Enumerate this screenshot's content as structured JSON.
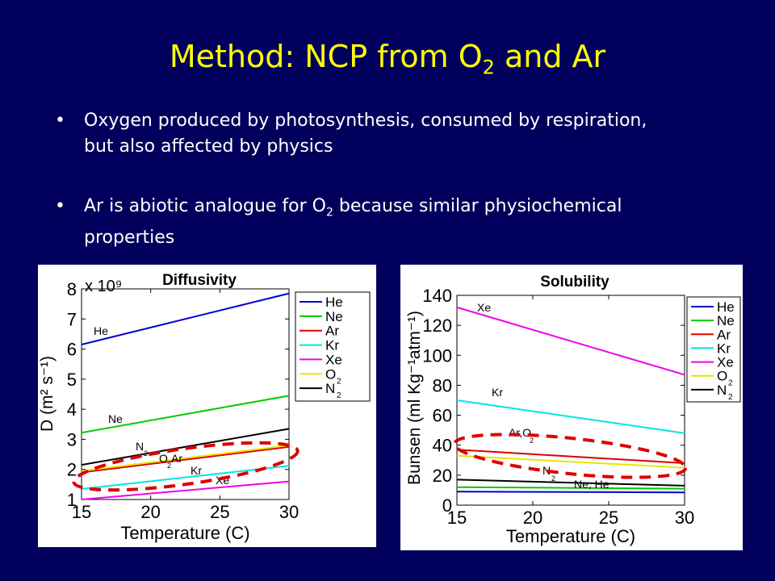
{
  "slide": {
    "title_main": "Method: NCP from O",
    "title_sub": "2",
    "title_tail": " and Ar",
    "bullets": [
      {
        "pre": "Oxygen produced by photosynthesis, consumed by respiration, but also affected by physics",
        "sub": "",
        "post": ""
      },
      {
        "pre": "Ar is abiotic analogue for O",
        "sub": "2",
        "post": "  because similar physiochemical properties"
      }
    ]
  },
  "colors": {
    "He": "#0000cc",
    "Ne": "#00cc00",
    "Ar": "#dd0000",
    "Kr": "#00e5e5",
    "Xe": "#ee00ee",
    "O2": "#e6e600",
    "N2": "#000000",
    "highlight": "#dd0000"
  },
  "chart_data": [
    {
      "type": "line",
      "title": "Diffusivity",
      "xlabel": "Temperature (C)",
      "ylabel": "D (m² s⁻¹)",
      "y_multiplier": "x 10⁹",
      "xlim": [
        15,
        30
      ],
      "ylim": [
        1,
        8
      ],
      "xticks": [
        "15",
        "20",
        "25",
        "30"
      ],
      "yticks": [
        "1",
        "2",
        "3",
        "4",
        "5",
        "6",
        "7",
        "8"
      ],
      "legend": [
        "He",
        "Ne",
        "Ar",
        "Kr",
        "Xe",
        "O2",
        "N2"
      ],
      "legend_position": "top-right",
      "x": [
        15,
        30
      ],
      "series": [
        {
          "name": "He",
          "values": [
            6.15,
            7.85
          ]
        },
        {
          "name": "Ne",
          "values": [
            3.22,
            4.45
          ]
        },
        {
          "name": "Ar",
          "values": [
            1.9,
            2.75
          ]
        },
        {
          "name": "Kr",
          "values": [
            1.35,
            2.12
          ]
        },
        {
          "name": "Xe",
          "values": [
            1.0,
            1.6
          ]
        },
        {
          "name": "O2",
          "values": [
            1.95,
            2.8
          ]
        },
        {
          "name": "N2",
          "values": [
            2.15,
            3.35
          ]
        }
      ],
      "annotations": [
        "He",
        "Ne",
        "N",
        "2",
        "O",
        "2",
        "Ar",
        "Kr",
        "Xe"
      ]
    },
    {
      "type": "line",
      "title": "Solubility",
      "xlabel": "Temperature (C)",
      "ylabel": "Bunsen (ml Kg⁻¹atm⁻¹)",
      "xlim": [
        15,
        30
      ],
      "ylim": [
        0,
        140
      ],
      "xticks": [
        "15",
        "20",
        "25",
        "30"
      ],
      "yticks": [
        "0",
        "20",
        "40",
        "60",
        "80",
        "100",
        "120",
        "140"
      ],
      "legend": [
        "He",
        "Ne",
        "Ar",
        "Kr",
        "Xe",
        "O2",
        "N2"
      ],
      "legend_position": "top-right",
      "x": [
        15,
        30
      ],
      "series": [
        {
          "name": "He",
          "values": [
            9,
            8.5
          ]
        },
        {
          "name": "Ne",
          "values": [
            12,
            11
          ]
        },
        {
          "name": "Ar",
          "values": [
            37,
            28
          ]
        },
        {
          "name": "Kr",
          "values": [
            70,
            48
          ]
        },
        {
          "name": "Xe",
          "values": [
            132,
            87
          ]
        },
        {
          "name": "O2",
          "values": [
            33,
            25
          ]
        },
        {
          "name": "N2",
          "values": [
            17,
            13
          ]
        }
      ],
      "annotations": [
        "Xe",
        "Kr",
        "Ar,O",
        "2",
        "N",
        "2",
        "Ne, He"
      ]
    }
  ]
}
